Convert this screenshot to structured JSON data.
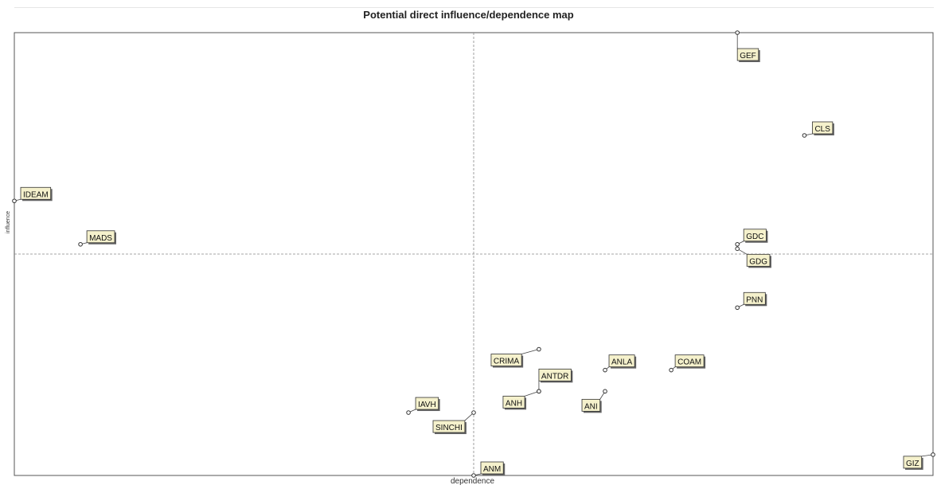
{
  "chart_data": {
    "type": "scatter",
    "title": "Potential direct influence/dependence map",
    "xlabel": "dependence",
    "ylabel": "influence",
    "xlim": [
      0,
      100
    ],
    "ylim": [
      0,
      100
    ],
    "quadrant_lines": {
      "x": 50,
      "y": 50
    },
    "grid": false,
    "points": [
      {
        "name": "GEF",
        "x": 78.7,
        "y": 100
      },
      {
        "name": "CLS",
        "x": 86.0,
        "y": 76.8
      },
      {
        "name": "IDEAM",
        "x": 0,
        "y": 62.0
      },
      {
        "name": "MADS",
        "x": 7.2,
        "y": 52.2
      },
      {
        "name": "GDC",
        "x": 78.7,
        "y": 52.2
      },
      {
        "name": "GDG",
        "x": 78.7,
        "y": 51.2
      },
      {
        "name": "PNN",
        "x": 78.7,
        "y": 37.9
      },
      {
        "name": "CRIMA",
        "x": 57.1,
        "y": 28.5
      },
      {
        "name": "ANLA",
        "x": 64.3,
        "y": 23.8
      },
      {
        "name": "COAM",
        "x": 71.5,
        "y": 23.8
      },
      {
        "name": "ANTDR",
        "x": 57.1,
        "y": 19.0
      },
      {
        "name": "ANH",
        "x": 57.1,
        "y": 19.0
      },
      {
        "name": "ANI",
        "x": 64.3,
        "y": 19.0
      },
      {
        "name": "IAVH",
        "x": 42.9,
        "y": 14.2
      },
      {
        "name": "SINCHI",
        "x": 50.0,
        "y": 14.2
      },
      {
        "name": "ANM",
        "x": 50.0,
        "y": 0
      },
      {
        "name": "GIZ",
        "x": 100,
        "y": 4.7
      }
    ],
    "colors": {
      "label_fill": "#f5f1cc",
      "label_border": "#333333",
      "frame": "#555555",
      "guide": "#888888"
    }
  }
}
